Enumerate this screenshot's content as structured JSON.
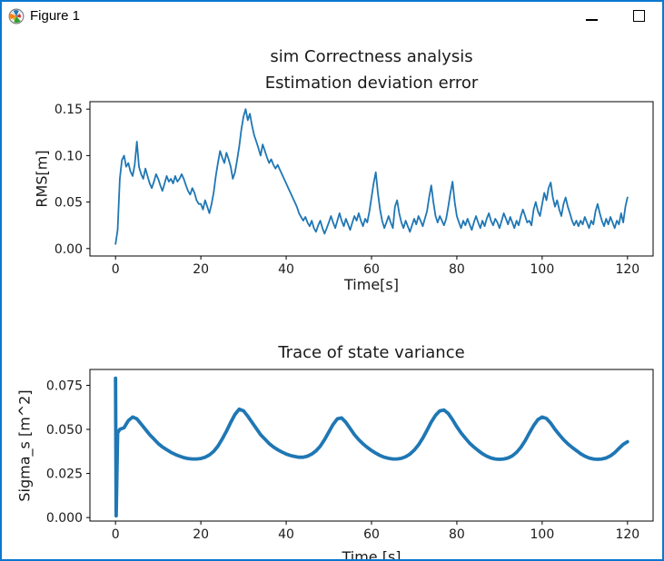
{
  "window": {
    "title": "Figure 1",
    "icon_name": "matplotlib-logo-icon",
    "border_color": "#0a78d0",
    "controls": {
      "minimize_icon": "minimize-icon",
      "maximize_icon": "maximize-icon"
    }
  },
  "figure": {
    "suptitle": "sim Correctness analysis",
    "background": "#ffffff",
    "line_color": "#1f77b4"
  },
  "chart_data": [
    {
      "type": "line",
      "title": "Estimation deviation error",
      "xlabel": "Time[s]",
      "ylabel": "RMS[m]",
      "xlim": [
        -6,
        126
      ],
      "ylim": [
        -0.008,
        0.158
      ],
      "xticks": [
        0,
        20,
        40,
        60,
        80,
        100,
        120
      ],
      "xtick_labels": [
        "0",
        "20",
        "40",
        "60",
        "80",
        "100",
        "120"
      ],
      "yticks": [
        0,
        0.05,
        0.1,
        0.15
      ],
      "ytick_labels": [
        "0.00",
        "0.05",
        "0.10",
        "0.15"
      ],
      "grid": false,
      "legend": null,
      "line_color": "#1f77b4",
      "line_width": 1.8,
      "series": [
        {
          "name": "rms-error",
          "x0": 0,
          "dx": 0.5,
          "y": [
            0.005,
            0.02,
            0.075,
            0.095,
            0.1,
            0.088,
            0.092,
            0.083,
            0.078,
            0.09,
            0.115,
            0.088,
            0.08,
            0.075,
            0.086,
            0.078,
            0.07,
            0.065,
            0.072,
            0.08,
            0.075,
            0.068,
            0.062,
            0.07,
            0.078,
            0.072,
            0.075,
            0.07,
            0.078,
            0.072,
            0.075,
            0.08,
            0.075,
            0.068,
            0.062,
            0.058,
            0.065,
            0.06,
            0.052,
            0.048,
            0.048,
            0.042,
            0.052,
            0.045,
            0.038,
            0.048,
            0.06,
            0.078,
            0.092,
            0.105,
            0.098,
            0.092,
            0.103,
            0.096,
            0.088,
            0.075,
            0.082,
            0.095,
            0.11,
            0.128,
            0.142,
            0.15,
            0.138,
            0.145,
            0.132,
            0.122,
            0.115,
            0.108,
            0.1,
            0.112,
            0.105,
            0.098,
            0.092,
            0.096,
            0.09,
            0.086,
            0.09,
            0.085,
            0.08,
            0.075,
            0.07,
            0.065,
            0.06,
            0.055,
            0.05,
            0.045,
            0.038,
            0.034,
            0.03,
            0.034,
            0.028,
            0.024,
            0.03,
            0.022,
            0.018,
            0.025,
            0.03,
            0.022,
            0.016,
            0.022,
            0.028,
            0.035,
            0.028,
            0.022,
            0.03,
            0.038,
            0.03,
            0.024,
            0.032,
            0.026,
            0.02,
            0.028,
            0.035,
            0.03,
            0.038,
            0.03,
            0.024,
            0.032,
            0.028,
            0.04,
            0.055,
            0.07,
            0.082,
            0.06,
            0.042,
            0.03,
            0.022,
            0.028,
            0.035,
            0.028,
            0.022,
            0.045,
            0.052,
            0.038,
            0.028,
            0.022,
            0.03,
            0.024,
            0.018,
            0.025,
            0.032,
            0.026,
            0.035,
            0.03,
            0.024,
            0.032,
            0.04,
            0.055,
            0.068,
            0.05,
            0.035,
            0.028,
            0.035,
            0.03,
            0.025,
            0.032,
            0.045,
            0.06,
            0.072,
            0.05,
            0.035,
            0.028,
            0.022,
            0.03,
            0.025,
            0.032,
            0.026,
            0.02,
            0.028,
            0.035,
            0.028,
            0.022,
            0.03,
            0.024,
            0.032,
            0.038,
            0.03,
            0.025,
            0.032,
            0.028,
            0.022,
            0.03,
            0.038,
            0.032,
            0.026,
            0.034,
            0.028,
            0.022,
            0.03,
            0.025,
            0.035,
            0.042,
            0.035,
            0.028,
            0.03,
            0.025,
            0.042,
            0.05,
            0.04,
            0.035,
            0.048,
            0.06,
            0.052,
            0.065,
            0.071,
            0.055,
            0.045,
            0.052,
            0.042,
            0.035,
            0.048,
            0.055,
            0.045,
            0.038,
            0.03,
            0.025,
            0.03,
            0.024,
            0.03,
            0.026,
            0.034,
            0.028,
            0.022,
            0.03,
            0.026,
            0.04,
            0.048,
            0.038,
            0.03,
            0.024,
            0.032,
            0.026,
            0.034,
            0.028,
            0.022,
            0.03,
            0.026,
            0.038,
            0.028,
            0.045,
            0.055
          ]
        }
      ]
    },
    {
      "type": "line",
      "title": "Trace of state variance",
      "xlabel": "Time [s]",
      "ylabel": "Sigma_s [m^2]",
      "xlim": [
        -6,
        126
      ],
      "ylim": [
        -0.002,
        0.084
      ],
      "xticks": [
        0,
        20,
        40,
        60,
        80,
        100,
        120
      ],
      "xtick_labels": [
        "0",
        "20",
        "40",
        "60",
        "80",
        "100",
        "120"
      ],
      "yticks": [
        0,
        0.025,
        0.05,
        0.075
      ],
      "ytick_labels": [
        "0.000",
        "0.025",
        "0.050",
        "0.075"
      ],
      "grid": false,
      "legend": null,
      "line_color": "#1f77b4",
      "line_width": 3.8,
      "series": [
        {
          "name": "sigma-trace",
          "x": [
            0,
            0.15,
            0.5,
            1,
            2,
            3,
            4,
            5,
            6,
            7,
            8,
            9,
            10,
            11,
            12,
            13,
            14,
            15,
            16,
            17,
            18,
            19,
            20,
            21,
            22,
            23,
            24,
            25,
            26,
            27,
            28,
            29,
            30,
            31,
            32,
            33,
            34,
            35,
            36,
            37,
            38,
            39,
            40,
            41,
            42,
            43,
            44,
            45,
            46,
            47,
            48,
            49,
            50,
            51,
            52,
            53,
            54,
            55,
            56,
            57,
            58,
            59,
            60,
            61,
            62,
            63,
            64,
            65,
            66,
            67,
            68,
            69,
            70,
            71,
            72,
            73,
            74,
            75,
            76,
            77,
            78,
            79,
            80,
            81,
            82,
            83,
            84,
            85,
            86,
            87,
            88,
            89,
            90,
            91,
            92,
            93,
            94,
            95,
            96,
            97,
            98,
            99,
            100,
            101,
            102,
            103,
            104,
            105,
            106,
            107,
            108,
            109,
            110,
            111,
            112,
            113,
            114,
            115,
            116,
            117,
            118,
            119,
            120
          ],
          "y": [
            0.079,
            0.001,
            0.048,
            0.05,
            0.051,
            0.055,
            0.057,
            0.056,
            0.053,
            0.05,
            0.047,
            0.0445,
            0.042,
            0.04,
            0.0385,
            0.037,
            0.0358,
            0.0348,
            0.034,
            0.0335,
            0.0332,
            0.0332,
            0.0335,
            0.0342,
            0.0355,
            0.0375,
            0.0405,
            0.0445,
            0.049,
            0.054,
            0.0585,
            0.0615,
            0.0605,
            0.0575,
            0.054,
            0.0505,
            0.047,
            0.0445,
            0.042,
            0.04,
            0.0385,
            0.0372,
            0.036,
            0.0352,
            0.0346,
            0.0342,
            0.0342,
            0.0348,
            0.036,
            0.0378,
            0.0405,
            0.0442,
            0.0485,
            0.0528,
            0.056,
            0.0565,
            0.054,
            0.0505,
            0.047,
            0.0442,
            0.0418,
            0.0398,
            0.038,
            0.0365,
            0.0352,
            0.0342,
            0.0336,
            0.0332,
            0.0332,
            0.0336,
            0.0345,
            0.036,
            0.0382,
            0.0412,
            0.045,
            0.0495,
            0.0542,
            0.058,
            0.0605,
            0.061,
            0.059,
            0.0555,
            0.0515,
            0.048,
            0.045,
            0.0422,
            0.04,
            0.038,
            0.0362,
            0.0348,
            0.0338,
            0.0332,
            0.033,
            0.0332,
            0.0338,
            0.035,
            0.037,
            0.0398,
            0.0435,
            0.048,
            0.0522,
            0.0555,
            0.057,
            0.0562,
            0.0535,
            0.05,
            0.047,
            0.0442,
            0.0418,
            0.0398,
            0.038,
            0.0362,
            0.0348,
            0.0338,
            0.0332,
            0.033,
            0.0332,
            0.0338,
            0.035,
            0.0368,
            0.0392,
            0.0415,
            0.043
          ]
        }
      ]
    }
  ]
}
